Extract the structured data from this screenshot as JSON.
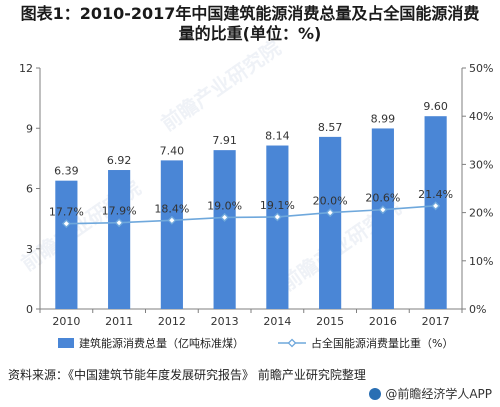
{
  "title_line1": "图表1：2010-2017年中国建筑能源消费总量及占全国能源消费",
  "title_line2": "量的比重(单位：%)",
  "source": "资料来源：《中国建筑节能年度发展研究报告》 前瞻产业研究院整理",
  "brand": "@前瞻经济学人APP",
  "watermark": "前瞻产业研究院",
  "colors": {
    "bar": "#4a86d6",
    "line": "#6fa8dc",
    "axis": "#7f7f7f",
    "grid": "#d9d9d9"
  },
  "chart_data": {
    "type": "bar",
    "categories": [
      "2010",
      "2011",
      "2012",
      "2013",
      "2014",
      "2015",
      "2016",
      "2017"
    ],
    "series": [
      {
        "name": "建筑能源消费总量（亿吨标准煤）",
        "type": "bar",
        "axis": "left",
        "values": [
          6.39,
          6.92,
          7.4,
          7.91,
          8.14,
          8.57,
          8.99,
          9.6
        ],
        "labels": [
          "6.39",
          "6.92",
          "7.40",
          "7.91",
          "8.14",
          "8.57",
          "8.99",
          "9.60"
        ]
      },
      {
        "name": "占全国能源消费量比重（%）",
        "type": "line",
        "axis": "right",
        "values": [
          17.7,
          17.9,
          18.4,
          19.0,
          19.1,
          20.0,
          20.6,
          21.4
        ],
        "labels": [
          "17.7%",
          "17.9%",
          "18.4%",
          "19.0%",
          "19.1%",
          "20.0%",
          "20.6%",
          "21.4%"
        ]
      }
    ],
    "ylim_left": [
      0,
      12
    ],
    "yticks_left": [
      "0",
      "3",
      "6",
      "9",
      "12"
    ],
    "ylim_right": [
      0,
      50
    ],
    "yticks_right": [
      "0%",
      "10%",
      "20%",
      "30%",
      "40%",
      "50%"
    ],
    "legend_position": "bottom",
    "grid": false
  }
}
